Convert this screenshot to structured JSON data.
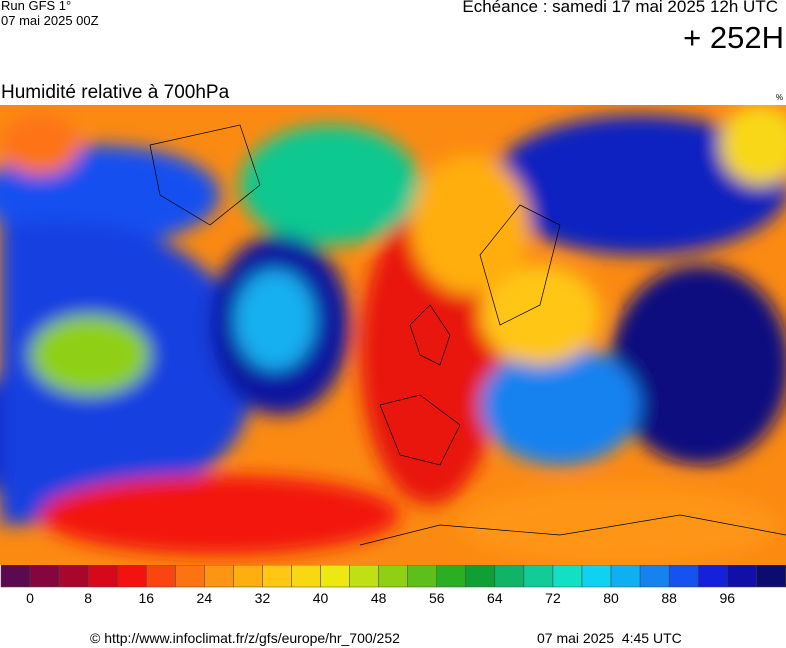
{
  "header": {
    "run": "Run GFS 1°",
    "run_date": "07 mai 2025 00Z",
    "valid": "Echéance : samedi 17 mai 2025 12h UTC",
    "lead": "+ 252H"
  },
  "map": {
    "title": "Humidité relative à 700hPa",
    "unit": "%"
  },
  "colorbar": {
    "ticks": [
      0,
      8,
      16,
      24,
      32,
      40,
      48,
      56,
      64,
      72,
      80,
      88,
      96
    ],
    "colors": [
      "#5c0a4e",
      "#85063f",
      "#a8062c",
      "#d8081c",
      "#f2120f",
      "#fb4510",
      "#fd7312",
      "#fe9512",
      "#ffae10",
      "#ffc612",
      "#f8d812",
      "#ece812",
      "#bfe015",
      "#8fd015",
      "#5cbf1a",
      "#2aae22",
      "#0e9f35",
      "#0fb468",
      "#12cb96",
      "#12e0c4",
      "#0fd2f0",
      "#0fb0f2",
      "#1582f0",
      "#1552f0",
      "#1420dc",
      "#1010a8",
      "#0c0c70",
      "#060640",
      "#000018"
    ]
  },
  "footer": {
    "source": "© http://www.infoclimat.fr/z/gfs/europe/hr_700/252",
    "generated": "07 mai 2025  4:45 UTC"
  }
}
